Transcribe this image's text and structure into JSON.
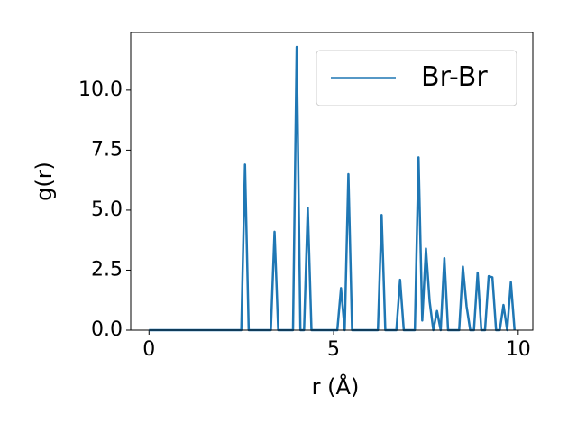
{
  "chart_data": {
    "type": "line",
    "xlabel": "r (Å)",
    "ylabel": "g(r)",
    "x": [
      0,
      0.1,
      0.2,
      0.3,
      0.4,
      0.5,
      0.6,
      0.7,
      0.8,
      0.9,
      1,
      1.1,
      1.2,
      1.3,
      1.4,
      1.5,
      1.6,
      1.7,
      1.8,
      1.9,
      2,
      2.1,
      2.2,
      2.3,
      2.4,
      2.5,
      2.6,
      2.7,
      2.8,
      2.9,
      3,
      3.1,
      3.2,
      3.3,
      3.4,
      3.5,
      3.6,
      3.7,
      3.8,
      3.9,
      4,
      4.1,
      4.2,
      4.3,
      4.4,
      4.5,
      4.6,
      4.7,
      4.8,
      4.9,
      5,
      5.1,
      5.2,
      5.3,
      5.4,
      5.5,
      5.6,
      5.7,
      5.8,
      5.9,
      6,
      6.1,
      6.2,
      6.3,
      6.4,
      6.5,
      6.6,
      6.7,
      6.8,
      6.9,
      7,
      7.1,
      7.2,
      7.3,
      7.4,
      7.5,
      7.6,
      7.7,
      7.8,
      7.9,
      8,
      8.1,
      8.2,
      8.3,
      8.4,
      8.5,
      8.6,
      8.7,
      8.8,
      8.9,
      9,
      9.1,
      9.2,
      9.3,
      9.4,
      9.5,
      9.6,
      9.7,
      9.8,
      9.9
    ],
    "series": [
      {
        "name": "Br-Br",
        "color": "#1f77b4",
        "values": [
          0,
          0,
          0,
          0,
          0,
          0,
          0,
          0,
          0,
          0,
          0,
          0,
          0,
          0,
          0,
          0,
          0,
          0,
          0,
          0,
          0,
          0,
          0,
          0,
          0,
          0,
          6.9,
          0,
          0,
          0,
          0,
          0,
          0,
          0,
          4.1,
          0,
          0,
          0,
          0,
          0,
          11.8,
          0,
          0,
          5.1,
          0,
          0,
          0,
          0,
          0,
          0,
          0,
          0,
          1.75,
          0,
          6.5,
          0,
          0,
          0,
          0,
          0,
          0,
          0,
          0,
          4.8,
          0,
          0,
          0,
          0,
          2.1,
          0,
          0,
          0,
          0,
          7.2,
          0.4,
          3.4,
          1.2,
          0,
          0.8,
          0,
          3.0,
          0,
          0,
          0,
          0,
          2.65,
          1.0,
          0,
          0,
          2.4,
          0,
          0,
          2.25,
          2.2,
          0,
          0,
          1.05,
          0,
          2.0,
          0
        ]
      }
    ],
    "xlim": [
      -0.495,
      10.395
    ],
    "ylim": [
      0,
      12.4
    ],
    "xticks": [
      0,
      5,
      10
    ],
    "yticks": [
      {
        "value": 0,
        "label": "0.0"
      },
      {
        "value": 2.5,
        "label": "2.5"
      },
      {
        "value": 5,
        "label": "5.0"
      },
      {
        "value": 7.5,
        "label": "7.5"
      },
      {
        "value": 10,
        "label": "10.0"
      }
    ],
    "legend": "upper right"
  }
}
